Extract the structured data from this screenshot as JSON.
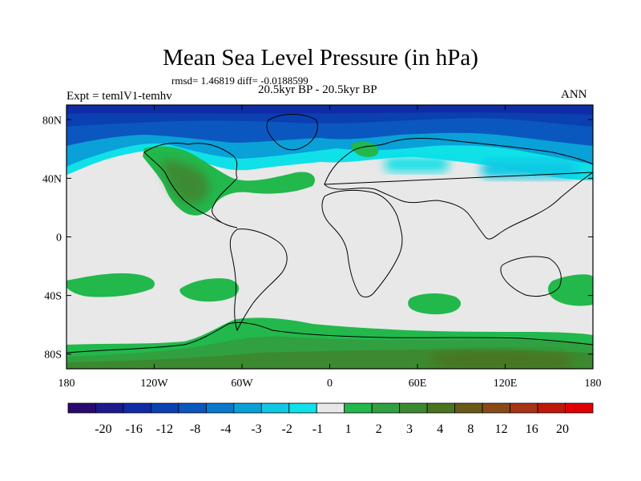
{
  "chart_data": {
    "type": "heatmap",
    "title": "Mean Sea Level Pressure (in hPa)",
    "stats": "rmsd= 1.46819 diff= -0.0188599",
    "subtitle": "20.5kyr BP - 20.5kyr BP",
    "left_label": "Expt = temlV1-temhv",
    "right_label": "ANN",
    "x_range": [
      -180,
      180
    ],
    "y_range": [
      -90,
      90
    ],
    "x_ticks": [
      {
        "value": -180,
        "label": "180"
      },
      {
        "value": -120,
        "label": "120W"
      },
      {
        "value": -60,
        "label": "60W"
      },
      {
        "value": 0,
        "label": "0"
      },
      {
        "value": 60,
        "label": "60E"
      },
      {
        "value": 120,
        "label": "120E"
      },
      {
        "value": 180,
        "label": "180"
      }
    ],
    "y_ticks": [
      {
        "value": 80,
        "label": "80N"
      },
      {
        "value": 40,
        "label": "40N"
      },
      {
        "value": 0,
        "label": "0"
      },
      {
        "value": -40,
        "label": "40S"
      },
      {
        "value": -80,
        "label": "80S"
      }
    ],
    "colorbar": {
      "colors": [
        "#2a0a6e",
        "#1c1a8c",
        "#0f2ca6",
        "#0a40b2",
        "#0a58bf",
        "#0a78cc",
        "#0aa0d8",
        "#10c8e4",
        "#10e0e8",
        "#e8e8e8",
        "#22b84c",
        "#30a040",
        "#3c8a30",
        "#4a7420",
        "#6a5a18",
        "#8a4a18",
        "#a83418",
        "#c01808",
        "#e00000"
      ],
      "labels": [
        "-20",
        "-16",
        "-12",
        "-8",
        "-4",
        "-3",
        "-2",
        "-1",
        "1",
        "2",
        "3",
        "4",
        "8",
        "12",
        "16",
        "20"
      ]
    },
    "regions": [
      {
        "label": "Arctic negative band",
        "lon": [
          -180,
          180
        ],
        "lat": [
          52,
          90
        ],
        "value": -8
      },
      {
        "label": "North American positive anomaly",
        "lon": [
          -135,
          -65
        ],
        "lat": [
          18,
          60
        ],
        "value": 3
      },
      {
        "label": "North Atlantic positive anomaly",
        "lon": [
          -70,
          -20
        ],
        "lat": [
          33,
          45
        ],
        "value": 2
      },
      {
        "label": "Scandinavia positive anomaly",
        "lon": [
          0,
          25
        ],
        "lat": [
          58,
          70
        ],
        "value": 2
      },
      {
        "label": "South Pacific positive band",
        "lon": [
          -180,
          -110
        ],
        "lat": [
          -42,
          -28
        ],
        "value": 2
      },
      {
        "label": "South Atlantic positive band",
        "lon": [
          -110,
          -65
        ],
        "lat": [
          -45,
          -30
        ],
        "value": 2
      },
      {
        "label": "Southern Indian Ocean positive",
        "lon": [
          60,
          95
        ],
        "lat": [
          -42,
          -33
        ],
        "value": 2
      },
      {
        "label": "Southern Ocean positive band",
        "lon": [
          -180,
          180
        ],
        "lat": [
          -90,
          -58
        ],
        "value": 3
      },
      {
        "label": "Antarctic interior positive",
        "lon": [
          60,
          160
        ],
        "lat": [
          -90,
          -70
        ],
        "value": 4
      }
    ]
  }
}
